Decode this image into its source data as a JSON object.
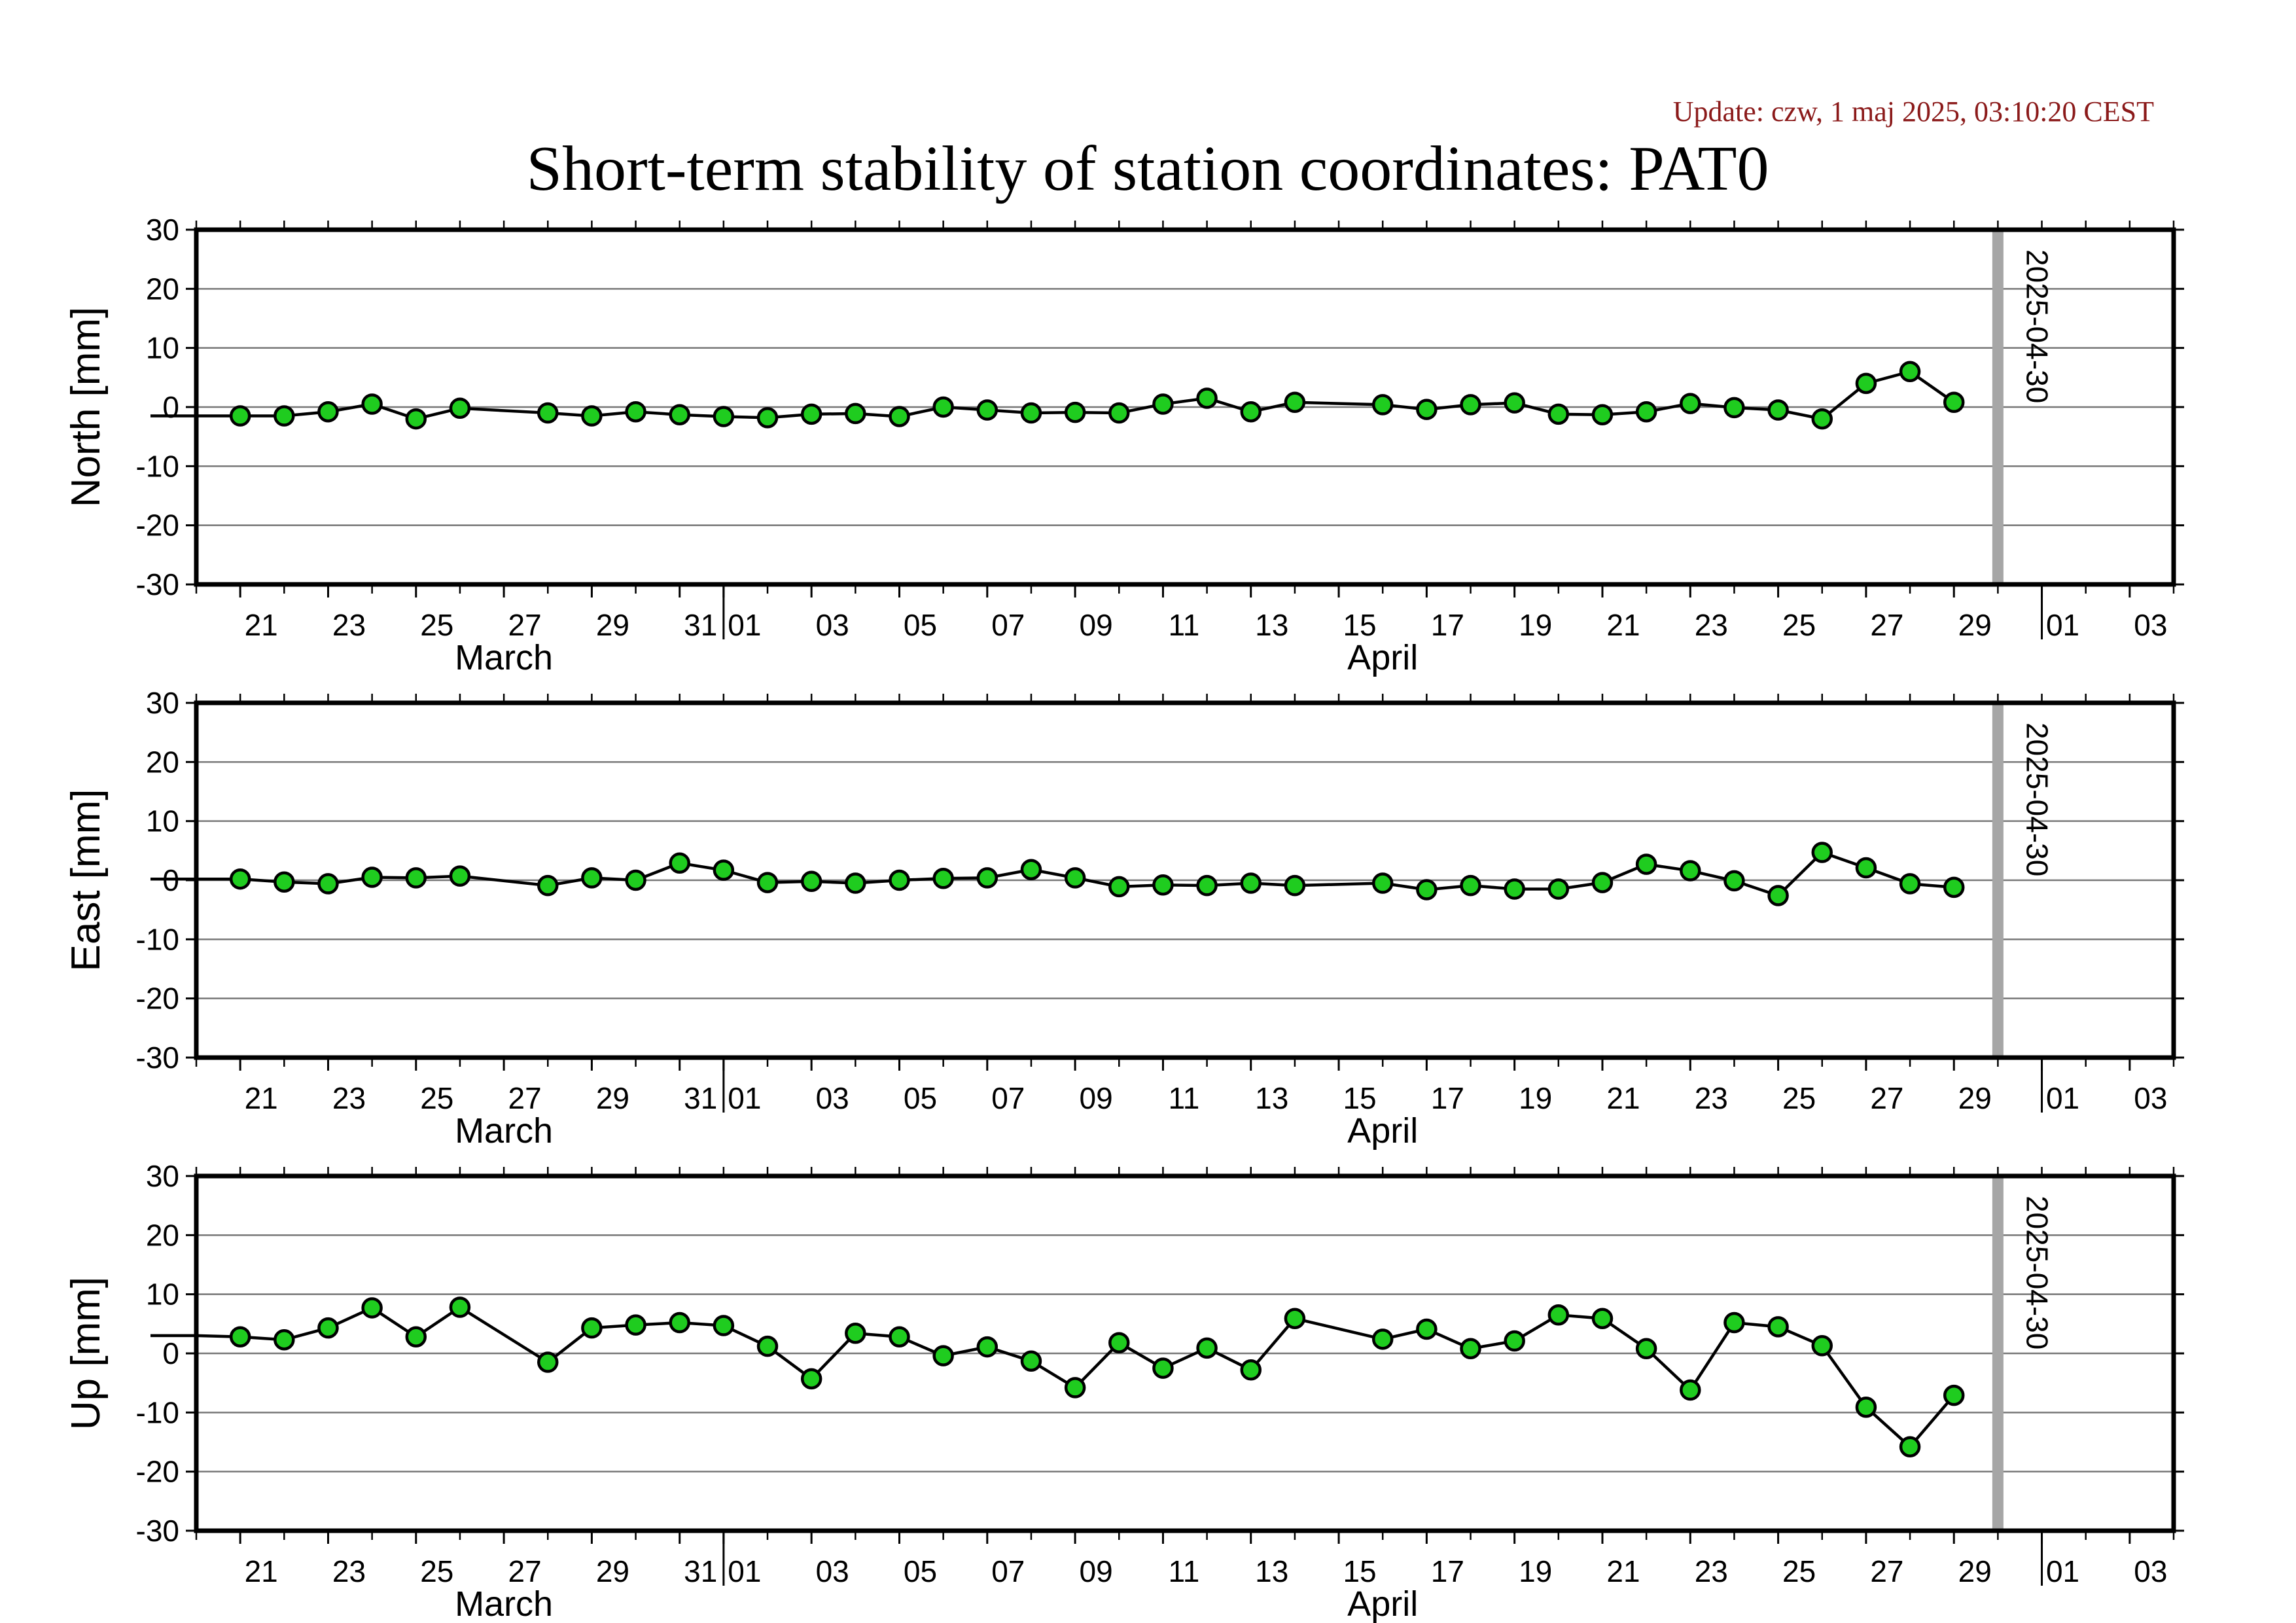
{
  "update_text": "Update: czw, 1 maj 2025, 03:10:20 CEST",
  "title": "Short-term stability of station coordinates: PAT0",
  "colors": {
    "point_fill": "#1fcc1f",
    "point_stroke": "#000000",
    "line": "#000000",
    "marker_line": "#a6a6a6",
    "grid": "#777777",
    "update_text": "#8b1a1a"
  },
  "x_axis": {
    "day_ticks": [
      "21",
      "23",
      "25",
      "27",
      "29",
      "31",
      "01",
      "03",
      "05",
      "07",
      "09",
      "11",
      "13",
      "15",
      "17",
      "19",
      "21",
      "23",
      "25",
      "27",
      "29",
      "01",
      "03"
    ],
    "months": [
      "March",
      "April"
    ]
  },
  "marker": {
    "label": "2025-04-30",
    "date": "2025-04-30"
  },
  "chart_data": [
    {
      "type": "line",
      "ylabel": "North [mm]",
      "ylim": [
        -30,
        30
      ],
      "yticks": [
        30,
        20,
        10,
        0,
        -10,
        -20,
        -30
      ],
      "xlim": [
        "2025-03-20",
        "2025-05-04"
      ],
      "grid": true,
      "x": [
        "2025-03-20",
        "2025-03-21",
        "2025-03-22",
        "2025-03-23",
        "2025-03-24",
        "2025-03-25",
        "2025-03-26",
        "2025-03-28",
        "2025-03-29",
        "2025-03-30",
        "2025-03-31",
        "2025-04-01",
        "2025-04-02",
        "2025-04-03",
        "2025-04-04",
        "2025-04-05",
        "2025-04-06",
        "2025-04-07",
        "2025-04-08",
        "2025-04-09",
        "2025-04-10",
        "2025-04-11",
        "2025-04-12",
        "2025-04-13",
        "2025-04-14",
        "2025-04-16",
        "2025-04-17",
        "2025-04-18",
        "2025-04-19",
        "2025-04-20",
        "2025-04-21",
        "2025-04-22",
        "2025-04-23",
        "2025-04-24",
        "2025-04-25",
        "2025-04-26",
        "2025-04-27",
        "2025-04-28",
        "2025-04-29"
      ],
      "values": [
        -1.5,
        -1.5,
        -1.5,
        -0.8,
        0.5,
        -2,
        -0.2,
        -1,
        -1.5,
        -0.8,
        -1.3,
        -1.6,
        -1.8,
        -1.2,
        -1.1,
        -1.6,
        0,
        -0.5,
        -1,
        -0.9,
        -1,
        0.5,
        1.5,
        -0.8,
        0.8,
        0.4,
        -0.4,
        0.4,
        0.7,
        -1.2,
        -1.3,
        -0.8,
        0.6,
        -0.1,
        -0.5,
        -2,
        4,
        6,
        0.8
      ]
    },
    {
      "type": "line",
      "ylabel": "East [mm]",
      "ylim": [
        -30,
        30
      ],
      "yticks": [
        30,
        20,
        10,
        0,
        -10,
        -20,
        -30
      ],
      "xlim": [
        "2025-03-20",
        "2025-05-04"
      ],
      "grid": true,
      "x": [
        "2025-03-20",
        "2025-03-21",
        "2025-03-22",
        "2025-03-23",
        "2025-03-24",
        "2025-03-25",
        "2025-03-26",
        "2025-03-28",
        "2025-03-29",
        "2025-03-30",
        "2025-03-31",
        "2025-04-01",
        "2025-04-02",
        "2025-04-03",
        "2025-04-04",
        "2025-04-05",
        "2025-04-06",
        "2025-04-07",
        "2025-04-08",
        "2025-04-09",
        "2025-04-10",
        "2025-04-11",
        "2025-04-12",
        "2025-04-13",
        "2025-04-14",
        "2025-04-16",
        "2025-04-17",
        "2025-04-18",
        "2025-04-19",
        "2025-04-20",
        "2025-04-21",
        "2025-04-22",
        "2025-04-23",
        "2025-04-24",
        "2025-04-25",
        "2025-04-26",
        "2025-04-27",
        "2025-04-28",
        "2025-04-29"
      ],
      "values": [
        0.2,
        0.2,
        -0.3,
        -0.6,
        0.5,
        0.4,
        0.7,
        -0.9,
        0.4,
        0,
        2.9,
        1.7,
        -0.4,
        -0.2,
        -0.5,
        0,
        0.3,
        0.4,
        1.8,
        0.4,
        -1.1,
        -0.8,
        -0.9,
        -0.5,
        -0.9,
        -0.5,
        -1.6,
        -0.9,
        -1.5,
        -1.5,
        -0.4,
        2.7,
        1.6,
        -0.1,
        -2.6,
        4.7,
        2.1,
        -0.6,
        -1.2
      ]
    },
    {
      "type": "line",
      "ylabel": "Up [mm]",
      "ylim": [
        -30,
        30
      ],
      "yticks": [
        30,
        20,
        10,
        0,
        -10,
        -20,
        -30
      ],
      "xlim": [
        "2025-03-20",
        "2025-05-04"
      ],
      "grid": true,
      "x": [
        "2025-03-20",
        "2025-03-21",
        "2025-03-22",
        "2025-03-23",
        "2025-03-24",
        "2025-03-25",
        "2025-03-26",
        "2025-03-28",
        "2025-03-29",
        "2025-03-30",
        "2025-03-31",
        "2025-04-01",
        "2025-04-02",
        "2025-04-03",
        "2025-04-04",
        "2025-04-05",
        "2025-04-06",
        "2025-04-07",
        "2025-04-08",
        "2025-04-09",
        "2025-04-10",
        "2025-04-11",
        "2025-04-12",
        "2025-04-13",
        "2025-04-14",
        "2025-04-16",
        "2025-04-17",
        "2025-04-18",
        "2025-04-19",
        "2025-04-20",
        "2025-04-21",
        "2025-04-22",
        "2025-04-23",
        "2025-04-24",
        "2025-04-25",
        "2025-04-26",
        "2025-04-27",
        "2025-04-28",
        "2025-04-29"
      ],
      "values": [
        3,
        2.8,
        2.3,
        4.3,
        7.7,
        2.8,
        7.8,
        -1.5,
        4.3,
        4.8,
        5.2,
        4.7,
        1.2,
        -4.3,
        3.4,
        2.8,
        -0.4,
        1.1,
        -1.3,
        -5.8,
        1.8,
        -2.5,
        0.9,
        -2.8,
        5.9,
        2.4,
        4.1,
        0.8,
        2.1,
        6.5,
        5.9,
        0.8,
        -6.2,
        5.2,
        4.5,
        1.3,
        -9.1,
        -15.8,
        -7.1
      ]
    }
  ]
}
